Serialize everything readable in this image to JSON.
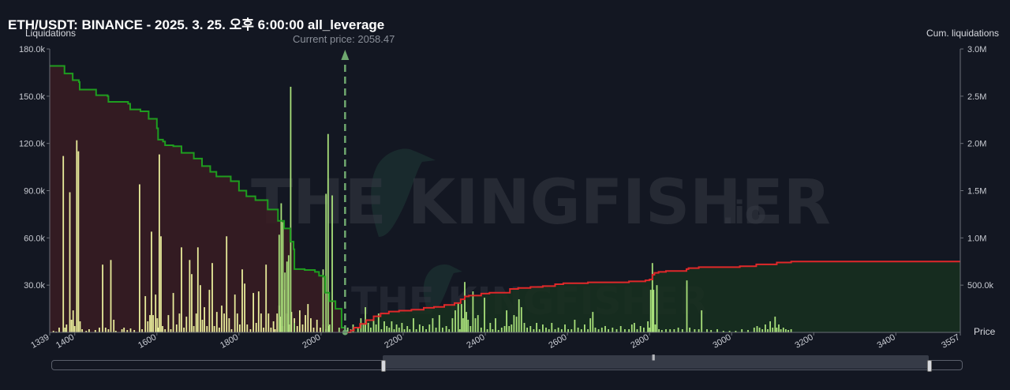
{
  "header": {
    "title": "ETH/USDT: BINANCE - 2025. 3. 25. 오후 6:00:00 all_leverage",
    "left_axis_caption": "Liquidations",
    "right_axis_caption": "Cum. liquidations",
    "price_axis_caption": "Price",
    "current_price_label": "Current price: 2058.47"
  },
  "watermark": {
    "big_text": "THE KINGFISHER",
    "big_suffix": ".io",
    "small_text": "THE KINGFISHER"
  },
  "chart_data": {
    "type": "bar",
    "title": "ETH/USDT: BINANCE - 2025. 3. 25. 오후 6:00:00 all_leverage",
    "xlabel": "Price",
    "ylabel": "Liquidations",
    "y2label": "Cum. liquidations",
    "xlim": [
      1339,
      3557
    ],
    "ylim": [
      0,
      180000
    ],
    "y2lim": [
      0,
      3000000
    ],
    "x_ticks": [
      1339,
      1400,
      1600,
      1800,
      2000,
      2200,
      2400,
      2600,
      2800,
      3000,
      3200,
      3400,
      3557
    ],
    "y_ticks": [
      "30.0k",
      "60.0k",
      "90.0k",
      "120.0k",
      "150.0k",
      "180.0k"
    ],
    "y2_ticks": [
      "500.0k",
      "1.0M",
      "1.5M",
      "2.0M",
      "2.5M",
      "3.0M"
    ],
    "current_price": 2058.47,
    "grid": false,
    "colors": {
      "long_bars": "#e8ec9a",
      "short_bars": "#a8e07a",
      "cum_long_line": "#1f9d1f",
      "cum_short_line": "#e0282a",
      "long_fill": "#3a1c22",
      "short_fill": "#17301f",
      "current_price_line": "#6fa86f"
    },
    "bars_long": [
      [
        1348,
        1000
      ],
      [
        1355,
        500
      ],
      [
        1362,
        3000
      ],
      [
        1372,
        112000
      ],
      [
        1376,
        3000
      ],
      [
        1380,
        5000
      ],
      [
        1388,
        89000
      ],
      [
        1392,
        8000
      ],
      [
        1396,
        14000
      ],
      [
        1400,
        4000
      ],
      [
        1405,
        122000
      ],
      [
        1409,
        115000
      ],
      [
        1413,
        7000
      ],
      [
        1418,
        2000
      ],
      [
        1428,
        1000
      ],
      [
        1435,
        2000
      ],
      [
        1450,
        1500
      ],
      [
        1460,
        3000
      ],
      [
        1468,
        43000
      ],
      [
        1475,
        3000
      ],
      [
        1482,
        2000
      ],
      [
        1488,
        46000
      ],
      [
        1495,
        8000
      ],
      [
        1500,
        1000
      ],
      [
        1515,
        2000
      ],
      [
        1520,
        3000
      ],
      [
        1528,
        1500
      ],
      [
        1536,
        2500
      ],
      [
        1545,
        1500
      ],
      [
        1558,
        94000
      ],
      [
        1564,
        2000
      ],
      [
        1572,
        23000
      ],
      [
        1578,
        7000
      ],
      [
        1583,
        11000
      ],
      [
        1587,
        64000
      ],
      [
        1591,
        11000
      ],
      [
        1597,
        24000
      ],
      [
        1601,
        9000
      ],
      [
        1604,
        3000
      ],
      [
        1606,
        113000
      ],
      [
        1610,
        61000
      ],
      [
        1614,
        4000
      ],
      [
        1620,
        2000
      ],
      [
        1628,
        11000
      ],
      [
        1634,
        2000
      ],
      [
        1640,
        25000
      ],
      [
        1648,
        5000
      ],
      [
        1655,
        12000
      ],
      [
        1660,
        54000
      ],
      [
        1666,
        3000
      ],
      [
        1672,
        10000
      ],
      [
        1680,
        46000
      ],
      [
        1685,
        37000
      ],
      [
        1690,
        4000
      ],
      [
        1696,
        12000
      ],
      [
        1700,
        54000
      ],
      [
        1706,
        30000
      ],
      [
        1711,
        8000
      ],
      [
        1716,
        16000
      ],
      [
        1722,
        4000
      ],
      [
        1728,
        27000
      ],
      [
        1735,
        44000
      ],
      [
        1740,
        4000
      ],
      [
        1746,
        13000
      ],
      [
        1752,
        3000
      ],
      [
        1758,
        17000
      ],
      [
        1764,
        12000
      ],
      [
        1770,
        61000
      ],
      [
        1776,
        9000
      ],
      [
        1782,
        2000
      ],
      [
        1790,
        24000
      ],
      [
        1796,
        12000
      ],
      [
        1802,
        5000
      ],
      [
        1808,
        40000
      ],
      [
        1814,
        31000
      ],
      [
        1820,
        5000
      ],
      [
        1828,
        2000
      ],
      [
        1835,
        25000
      ],
      [
        1842,
        6000
      ],
      [
        1848,
        26000
      ],
      [
        1854,
        12000
      ],
      [
        1860,
        3000
      ],
      [
        1866,
        43000
      ],
      [
        1872,
        12000
      ],
      [
        1878,
        3000
      ],
      [
        1884,
        7000
      ],
      [
        1888,
        2000
      ],
      [
        1893,
        12000
      ],
      [
        1898,
        17000
      ],
      [
        1902,
        10000
      ],
      [
        1907,
        4000
      ],
      [
        1912,
        27000
      ],
      [
        1917,
        12000
      ],
      [
        1922,
        5000
      ],
      [
        1928,
        13000
      ],
      [
        1935,
        9000
      ],
      [
        1942,
        4000
      ],
      [
        1948,
        14000
      ],
      [
        1955,
        5000
      ],
      [
        1962,
        11000
      ],
      [
        1968,
        18000
      ],
      [
        1975,
        9000
      ],
      [
        1982,
        3000
      ],
      [
        1990,
        8000
      ],
      [
        1998,
        3000
      ],
      [
        2005,
        5000
      ],
      [
        2012,
        2000
      ],
      [
        2020,
        4000
      ]
    ],
    "bars_short": [
      [
        1898,
        62000
      ],
      [
        1903,
        82000
      ],
      [
        1907,
        70000
      ],
      [
        1912,
        38000
      ],
      [
        1917,
        45000
      ],
      [
        1921,
        49000
      ],
      [
        1926,
        156000
      ],
      [
        1935,
        6000
      ],
      [
        2005,
        40000
      ],
      [
        2012,
        88000
      ],
      [
        2017,
        126000
      ],
      [
        2021,
        5000
      ],
      [
        2027,
        87000
      ],
      [
        2044,
        3000
      ],
      [
        2065,
        3000
      ],
      [
        2072,
        2000
      ],
      [
        2078,
        5000
      ],
      [
        2090,
        3000
      ],
      [
        2097,
        9000
      ],
      [
        2103,
        5000
      ],
      [
        2108,
        16000
      ],
      [
        2115,
        6000
      ],
      [
        2121,
        3000
      ],
      [
        2128,
        8000
      ],
      [
        2134,
        5000
      ],
      [
        2140,
        12000
      ],
      [
        2147,
        2000
      ],
      [
        2154,
        7000
      ],
      [
        2160,
        4000
      ],
      [
        2166,
        3000
      ],
      [
        2172,
        7000
      ],
      [
        2178,
        2000
      ],
      [
        2184,
        5000
      ],
      [
        2190,
        3000
      ],
      [
        2197,
        6000
      ],
      [
        2203,
        2000
      ],
      [
        2210,
        4000
      ],
      [
        2216,
        2000
      ],
      [
        2225,
        9000
      ],
      [
        2232,
        2000
      ],
      [
        2240,
        5000
      ],
      [
        2248,
        4000
      ],
      [
        2256,
        2000
      ],
      [
        2264,
        5000
      ],
      [
        2272,
        9000
      ],
      [
        2280,
        3000
      ],
      [
        2288,
        11000
      ],
      [
        2296,
        3000
      ],
      [
        2305,
        4000
      ],
      [
        2312,
        2000
      ],
      [
        2320,
        9000
      ],
      [
        2327,
        14000
      ],
      [
        2334,
        19000
      ],
      [
        2338,
        2000
      ],
      [
        2342,
        18000
      ],
      [
        2346,
        9000
      ],
      [
        2350,
        32000
      ],
      [
        2354,
        13000
      ],
      [
        2358,
        8000
      ],
      [
        2364,
        4000
      ],
      [
        2370,
        26000
      ],
      [
        2376,
        9000
      ],
      [
        2382,
        11000
      ],
      [
        2390,
        3000
      ],
      [
        2398,
        22000
      ],
      [
        2405,
        2000
      ],
      [
        2412,
        6000
      ],
      [
        2418,
        2000
      ],
      [
        2425,
        9000
      ],
      [
        2432,
        1500
      ],
      [
        2440,
        3000
      ],
      [
        2447,
        4000
      ],
      [
        2452,
        14000
      ],
      [
        2458,
        4000
      ],
      [
        2464,
        5000
      ],
      [
        2470,
        11000
      ],
      [
        2476,
        10000
      ],
      [
        2482,
        21000
      ],
      [
        2488,
        16000
      ],
      [
        2495,
        6000
      ],
      [
        2502,
        3000
      ],
      [
        2510,
        4000
      ],
      [
        2518,
        2000
      ],
      [
        2525,
        6000
      ],
      [
        2532,
        2000
      ],
      [
        2540,
        5000
      ],
      [
        2548,
        3000
      ],
      [
        2555,
        2000
      ],
      [
        2562,
        6000
      ],
      [
        2570,
        2000
      ],
      [
        2578,
        3000
      ],
      [
        2586,
        2000
      ],
      [
        2594,
        5000
      ],
      [
        2602,
        2000
      ],
      [
        2610,
        2000
      ],
      [
        2618,
        8000
      ],
      [
        2626,
        3000
      ],
      [
        2634,
        2000
      ],
      [
        2642,
        5000
      ],
      [
        2650,
        2000
      ],
      [
        2656,
        9000
      ],
      [
        2662,
        13000
      ],
      [
        2668,
        3000
      ],
      [
        2676,
        2000
      ],
      [
        2684,
        3000
      ],
      [
        2692,
        4000
      ],
      [
        2700,
        2000
      ],
      [
        2710,
        3000
      ],
      [
        2720,
        2000
      ],
      [
        2730,
        4000
      ],
      [
        2740,
        2000
      ],
      [
        2750,
        2000
      ],
      [
        2757,
        5000
      ],
      [
        2763,
        6000
      ],
      [
        2770,
        2000
      ],
      [
        2778,
        4000
      ],
      [
        2786,
        3000
      ],
      [
        2796,
        7000
      ],
      [
        2800,
        3000
      ],
      [
        2803,
        27000
      ],
      [
        2807,
        44000
      ],
      [
        2810,
        27000
      ],
      [
        2814,
        5000
      ],
      [
        2818,
        30000
      ],
      [
        2823,
        2000
      ],
      [
        2830,
        1500
      ],
      [
        2840,
        2000
      ],
      [
        2850,
        2000
      ],
      [
        2860,
        2000
      ],
      [
        2870,
        3000
      ],
      [
        2880,
        2000
      ],
      [
        2891,
        33000
      ],
      [
        2898,
        3000
      ],
      [
        2910,
        2000
      ],
      [
        2920,
        2000
      ],
      [
        2927,
        14000
      ],
      [
        2940,
        2000
      ],
      [
        2950,
        1500
      ],
      [
        2965,
        2000
      ],
      [
        2980,
        1000
      ],
      [
        2995,
        1000
      ],
      [
        3010,
        1000
      ],
      [
        3025,
        2000
      ],
      [
        3040,
        1500
      ],
      [
        3055,
        3000
      ],
      [
        3062,
        4000
      ],
      [
        3068,
        3000
      ],
      [
        3075,
        2000
      ],
      [
        3082,
        5000
      ],
      [
        3088,
        2000
      ],
      [
        3094,
        7000
      ],
      [
        3100,
        3000
      ],
      [
        3106,
        10000
      ],
      [
        3110,
        3000
      ],
      [
        3115,
        5000
      ],
      [
        3120,
        2000
      ],
      [
        3126,
        3000
      ],
      [
        3132,
        2000
      ],
      [
        3138,
        1500
      ],
      [
        3145,
        2000
      ]
    ],
    "cum_long": [
      [
        1339,
        2820000
      ],
      [
        1370,
        2820000
      ],
      [
        1375,
        2740000
      ],
      [
        1390,
        2740000
      ],
      [
        1395,
        2670000
      ],
      [
        1410,
        2650000
      ],
      [
        1412,
        2570000
      ],
      [
        1450,
        2570000
      ],
      [
        1452,
        2510000
      ],
      [
        1480,
        2500000
      ],
      [
        1482,
        2440000
      ],
      [
        1530,
        2420000
      ],
      [
        1535,
        2360000
      ],
      [
        1560,
        2340000
      ],
      [
        1580,
        2260000
      ],
      [
        1600,
        2160000
      ],
      [
        1603,
        2040000
      ],
      [
        1615,
        2020000
      ],
      [
        1620,
        1980000
      ],
      [
        1640,
        1970000
      ],
      [
        1660,
        1900000
      ],
      [
        1690,
        1840000
      ],
      [
        1710,
        1760000
      ],
      [
        1730,
        1700000
      ],
      [
        1745,
        1650000
      ],
      [
        1780,
        1600000
      ],
      [
        1800,
        1500000
      ],
      [
        1818,
        1440000
      ],
      [
        1840,
        1400000
      ],
      [
        1870,
        1300000
      ],
      [
        1895,
        1180000
      ],
      [
        1910,
        1100000
      ],
      [
        1925,
        960000
      ],
      [
        1933,
        880000
      ],
      [
        1935,
        670000
      ],
      [
        1960,
        660000
      ],
      [
        1985,
        640000
      ],
      [
        1995,
        600000
      ],
      [
        2005,
        590000
      ],
      [
        2010,
        420000
      ],
      [
        2020,
        330000
      ],
      [
        2035,
        250000
      ],
      [
        2050,
        50000
      ],
      [
        2058,
        0
      ]
    ],
    "cum_short": [
      [
        2058,
        0
      ],
      [
        2072,
        20000
      ],
      [
        2080,
        50000
      ],
      [
        2095,
        90000
      ],
      [
        2110,
        130000
      ],
      [
        2128,
        170000
      ],
      [
        2145,
        200000
      ],
      [
        2165,
        220000
      ],
      [
        2190,
        230000
      ],
      [
        2220,
        240000
      ],
      [
        2250,
        260000
      ],
      [
        2275,
        270000
      ],
      [
        2300,
        290000
      ],
      [
        2325,
        310000
      ],
      [
        2340,
        350000
      ],
      [
        2350,
        380000
      ],
      [
        2360,
        390000
      ],
      [
        2390,
        410000
      ],
      [
        2410,
        420000
      ],
      [
        2440,
        420000
      ],
      [
        2460,
        460000
      ],
      [
        2480,
        470000
      ],
      [
        2510,
        480000
      ],
      [
        2540,
        490000
      ],
      [
        2570,
        510000
      ],
      [
        2590,
        520000
      ],
      [
        2620,
        520000
      ],
      [
        2650,
        530000
      ],
      [
        2700,
        530000
      ],
      [
        2750,
        540000
      ],
      [
        2790,
        550000
      ],
      [
        2800,
        560000
      ],
      [
        2807,
        610000
      ],
      [
        2812,
        630000
      ],
      [
        2822,
        640000
      ],
      [
        2840,
        650000
      ],
      [
        2880,
        650000
      ],
      [
        2890,
        670000
      ],
      [
        2895,
        680000
      ],
      [
        2920,
        690000
      ],
      [
        2990,
        690000
      ],
      [
        3020,
        700000
      ],
      [
        3060,
        720000
      ],
      [
        3110,
        740000
      ],
      [
        3145,
        750000
      ],
      [
        3557,
        750000
      ]
    ]
  }
}
